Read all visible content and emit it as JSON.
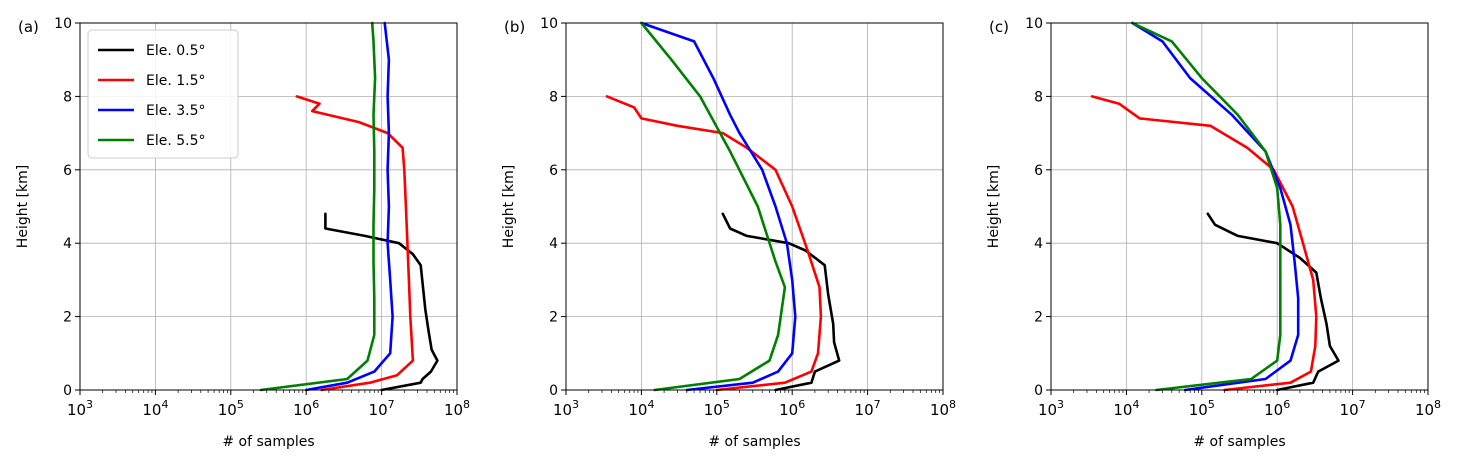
{
  "chart_data": [
    {
      "type": "line",
      "panel_label": "(a)",
      "xlabel": "# of samples",
      "ylabel": "Height [km]",
      "xscale": "log",
      "xlim": [
        1000,
        100000000
      ],
      "ylim": [
        0,
        10
      ],
      "grid": true,
      "yticks": [
        "0",
        "2",
        "4",
        "6",
        "8",
        "10"
      ],
      "legend": {
        "placement": "upper-left",
        "entries": [
          "Ele. 0.5°",
          "Ele. 1.5°",
          "Ele. 3.5°",
          "Ele. 5.5°"
        ]
      },
      "series": [
        {
          "name": "Ele. 0.5°",
          "color": "#000000",
          "points": [
            [
              10000000,
              0
            ],
            [
              33000000,
              0.2
            ],
            [
              35000000,
              0.3
            ],
            [
              45000000,
              0.5
            ],
            [
              55000000,
              0.8
            ],
            [
              46000000,
              1.1
            ],
            [
              42000000,
              1.6
            ],
            [
              38000000,
              2.2
            ],
            [
              33000000,
              3.4
            ],
            [
              26000000,
              3.7
            ],
            [
              17000000,
              4.0
            ],
            [
              6000000,
              4.2
            ],
            [
              1800000,
              4.4
            ],
            [
              1800000,
              4.8
            ]
          ]
        },
        {
          "name": "Ele. 1.5°",
          "color": "#ff0000",
          "points": [
            [
              1600000,
              0
            ],
            [
              7000000,
              0.2
            ],
            [
              16000000,
              0.4
            ],
            [
              26000000,
              0.8
            ],
            [
              25000000,
              1.4
            ],
            [
              24000000,
              2.0
            ],
            [
              23000000,
              3.0
            ],
            [
              22000000,
              4.0
            ],
            [
              21000000,
              5.0
            ],
            [
              20000000,
              6.0
            ],
            [
              19000000,
              6.6
            ],
            [
              12000000,
              7.0
            ],
            [
              5000000,
              7.3
            ],
            [
              1200000,
              7.6
            ],
            [
              1500000,
              7.8
            ],
            [
              750000,
              8.0
            ]
          ]
        },
        {
          "name": "Ele. 3.5°",
          "color": "#0000ff",
          "points": [
            [
              1000000,
              0
            ],
            [
              3500000,
              0.2
            ],
            [
              8000000,
              0.5
            ],
            [
              13000000,
              1.0
            ],
            [
              14000000,
              2.0
            ],
            [
              13000000,
              3.0
            ],
            [
              12000000,
              4.0
            ],
            [
              12500000,
              5.0
            ],
            [
              12000000,
              6.0
            ],
            [
              12500000,
              7.0
            ],
            [
              12000000,
              8.0
            ],
            [
              12500000,
              9.0
            ],
            [
              11000000,
              10.0
            ]
          ]
        },
        {
          "name": "Ele. 5.5°",
          "color": "#008000",
          "points": [
            [
              250000,
              0
            ],
            [
              3500000,
              0.3
            ],
            [
              6500000,
              0.8
            ],
            [
              8000000,
              1.5
            ],
            [
              8000000,
              2.5
            ],
            [
              7800000,
              3.5
            ],
            [
              7800000,
              4.5
            ],
            [
              8000000,
              5.5
            ],
            [
              8000000,
              6.5
            ],
            [
              7800000,
              7.5
            ],
            [
              8200000,
              8.5
            ],
            [
              7800000,
              9.5
            ],
            [
              7500000,
              10.0
            ]
          ]
        }
      ]
    },
    {
      "type": "line",
      "panel_label": "(b)",
      "xlabel": "# of samples",
      "ylabel": "Height [km]",
      "xscale": "log",
      "xlim": [
        1000,
        100000000
      ],
      "ylim": [
        0,
        10
      ],
      "grid": true,
      "yticks": [
        "0",
        "2",
        "4",
        "6",
        "8",
        "10"
      ],
      "series": [
        {
          "name": "Ele. 0.5°",
          "color": "#000000",
          "points": [
            [
              600000,
              0
            ],
            [
              1800000,
              0.2
            ],
            [
              2000000,
              0.5
            ],
            [
              4200000,
              0.8
            ],
            [
              3600000,
              1.3
            ],
            [
              3500000,
              1.8
            ],
            [
              3000000,
              2.6
            ],
            [
              2700000,
              3.4
            ],
            [
              1500000,
              3.8
            ],
            [
              900000,
              4.0
            ],
            [
              250000,
              4.2
            ],
            [
              150000,
              4.4
            ],
            [
              120000,
              4.8
            ]
          ]
        },
        {
          "name": "Ele. 1.5°",
          "color": "#ff0000",
          "points": [
            [
              100000,
              0
            ],
            [
              800000,
              0.2
            ],
            [
              1800000,
              0.5
            ],
            [
              2200000,
              1.0
            ],
            [
              2400000,
              2.0
            ],
            [
              2300000,
              2.8
            ],
            [
              1600000,
              3.8
            ],
            [
              1000000,
              5.0
            ],
            [
              600000,
              6.0
            ],
            [
              250000,
              6.6
            ],
            [
              120000,
              7.0
            ],
            [
              30000,
              7.2
            ],
            [
              10000,
              7.4
            ],
            [
              8000,
              7.7
            ],
            [
              3500,
              8.0
            ]
          ]
        },
        {
          "name": "Ele. 3.5°",
          "color": "#0000ff",
          "points": [
            [
              40000,
              0
            ],
            [
              300000,
              0.2
            ],
            [
              650000,
              0.5
            ],
            [
              1000000,
              1.0
            ],
            [
              1100000,
              2.0
            ],
            [
              1000000,
              3.0
            ],
            [
              850000,
              4.0
            ],
            [
              600000,
              5.0
            ],
            [
              400000,
              6.0
            ],
            [
              200000,
              7.0
            ],
            [
              150000,
              7.5
            ],
            [
              90000,
              8.5
            ],
            [
              50000,
              9.5
            ],
            [
              10000,
              10.0
            ]
          ]
        },
        {
          "name": "Ele. 5.5°",
          "color": "#008000",
          "points": [
            [
              15000,
              0
            ],
            [
              200000,
              0.3
            ],
            [
              500000,
              0.8
            ],
            [
              650000,
              1.5
            ],
            [
              800000,
              2.8
            ],
            [
              600000,
              3.5
            ],
            [
              350000,
              5.0
            ],
            [
              150000,
              6.5
            ],
            [
              60000,
              8.0
            ],
            [
              25000,
              9.0
            ],
            [
              10000,
              10.0
            ]
          ]
        }
      ]
    },
    {
      "type": "line",
      "panel_label": "(c)",
      "xlabel": "# of samples",
      "ylabel": "Height [km]",
      "xscale": "log",
      "xlim": [
        1000,
        100000000
      ],
      "ylim": [
        0,
        10
      ],
      "grid": true,
      "yticks": [
        "0",
        "2",
        "4",
        "6",
        "8",
        "10"
      ],
      "series": [
        {
          "name": "Ele. 0.5°",
          "color": "#000000",
          "points": [
            [
              1000000,
              0
            ],
            [
              3000000,
              0.2
            ],
            [
              3500000,
              0.5
            ],
            [
              6500000,
              0.8
            ],
            [
              5000000,
              1.2
            ],
            [
              4500000,
              1.8
            ],
            [
              3800000,
              2.5
            ],
            [
              3300000,
              3.2
            ],
            [
              2000000,
              3.6
            ],
            [
              1000000,
              4.0
            ],
            [
              300000,
              4.2
            ],
            [
              150000,
              4.5
            ],
            [
              120000,
              4.8
            ]
          ]
        },
        {
          "name": "Ele. 1.5°",
          "color": "#ff0000",
          "points": [
            [
              200000,
              0
            ],
            [
              1500000,
              0.2
            ],
            [
              2800000,
              0.5
            ],
            [
              3200000,
              1.2
            ],
            [
              3300000,
              2.0
            ],
            [
              3000000,
              3.0
            ],
            [
              2200000,
              4.0
            ],
            [
              1600000,
              5.0
            ],
            [
              900000,
              6.0
            ],
            [
              400000,
              6.6
            ],
            [
              130000,
              7.2
            ],
            [
              15000,
              7.4
            ],
            [
              8000,
              7.8
            ],
            [
              3500,
              8.0
            ]
          ]
        },
        {
          "name": "Ele. 3.5°",
          "color": "#0000ff",
          "points": [
            [
              60000,
              0
            ],
            [
              700000,
              0.3
            ],
            [
              1500000,
              0.8
            ],
            [
              1900000,
              1.5
            ],
            [
              1900000,
              2.5
            ],
            [
              1700000,
              3.5
            ],
            [
              1500000,
              4.5
            ],
            [
              1100000,
              5.5
            ],
            [
              700000,
              6.5
            ],
            [
              250000,
              7.5
            ],
            [
              70000,
              8.5
            ],
            [
              30000,
              9.5
            ],
            [
              12000,
              10.0
            ]
          ]
        },
        {
          "name": "Ele. 5.5°",
          "color": "#008000",
          "points": [
            [
              25000,
              0
            ],
            [
              450000,
              0.3
            ],
            [
              1000000,
              0.8
            ],
            [
              1100000,
              1.5
            ],
            [
              1100000,
              2.5
            ],
            [
              1100000,
              3.5
            ],
            [
              1100000,
              4.5
            ],
            [
              1000000,
              5.5
            ],
            [
              700000,
              6.5
            ],
            [
              300000,
              7.5
            ],
            [
              100000,
              8.5
            ],
            [
              40000,
              9.5
            ],
            [
              12000,
              10.0
            ]
          ]
        }
      ]
    }
  ]
}
